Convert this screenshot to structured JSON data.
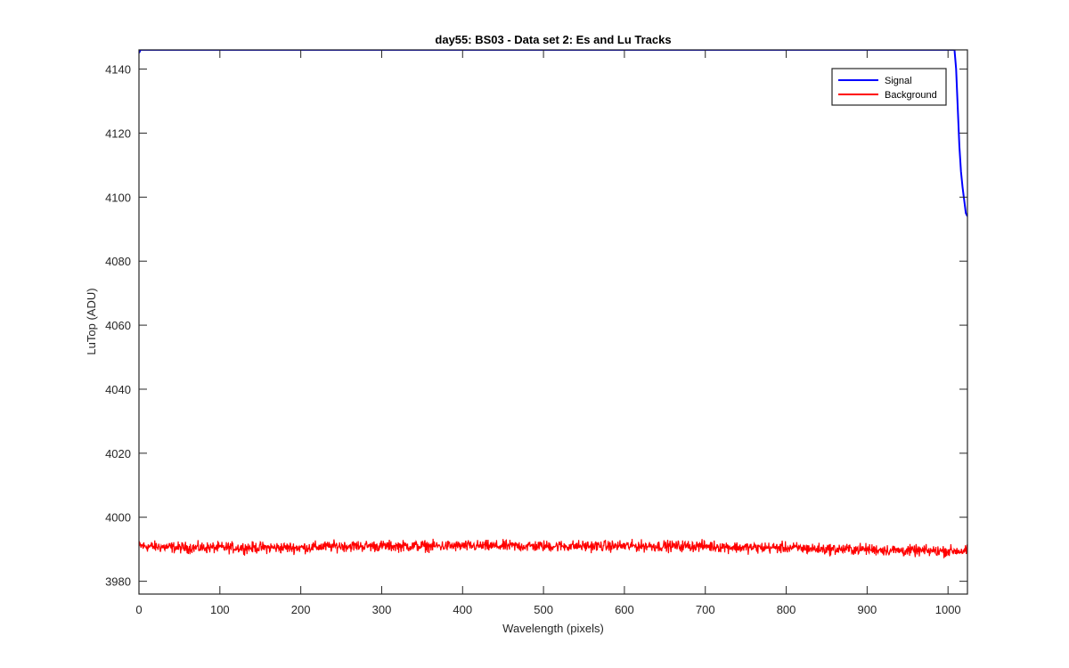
{
  "chart_data": {
    "type": "line",
    "title": "day55: BS03 - Data set 2: Es and Lu Tracks",
    "xlabel": "Wavelength (pixels)",
    "ylabel": "LuTop (ADU)",
    "xlim": [
      0,
      1024
    ],
    "ylim": [
      3976,
      4146
    ],
    "xticks": [
      0,
      100,
      200,
      300,
      400,
      500,
      600,
      700,
      800,
      900,
      1000
    ],
    "yticks": [
      3980,
      4000,
      4020,
      4040,
      4060,
      4080,
      4100,
      4120,
      4140
    ],
    "grid": false,
    "legend_position": "top-right",
    "series": [
      {
        "name": "Signal",
        "color": "#0000ff",
        "x": [
          0,
          2,
          1008,
          1010,
          1012,
          1014,
          1016,
          1018,
          1020,
          1022,
          1024
        ],
        "y": [
          4145,
          4146,
          4146,
          4140,
          4128,
          4116,
          4108,
          4103,
          4099,
          4095,
          4094
        ]
      },
      {
        "name": "Background",
        "color": "#ff0000",
        "x": [
          0,
          50,
          100,
          150,
          200,
          250,
          300,
          350,
          400,
          450,
          500,
          550,
          600,
          650,
          700,
          750,
          800,
          850,
          900,
          950,
          1000,
          1024
        ],
        "y": [
          3991,
          3990.5,
          3990.5,
          3990.5,
          3990.5,
          3991,
          3991,
          3991,
          3991,
          3991,
          3991,
          3991,
          3991,
          3991,
          3991,
          3990.5,
          3990.5,
          3990,
          3990,
          3989.5,
          3989.5,
          3989.5
        ],
        "noise_amplitude": 1.6
      }
    ]
  }
}
